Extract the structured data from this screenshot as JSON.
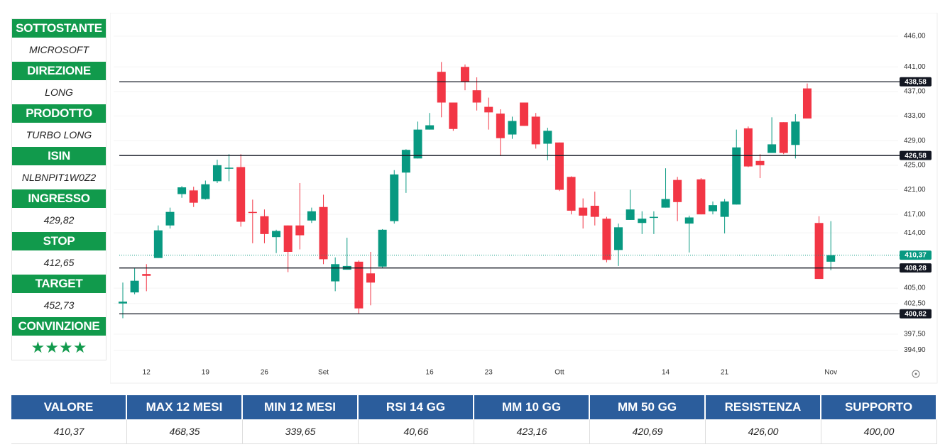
{
  "sidebar": [
    {
      "label": "SOTTOSTANTE",
      "value": "MICROSOFT"
    },
    {
      "label": "DIREZIONE",
      "value": "LONG"
    },
    {
      "label": "PRODOTTO",
      "value": "TURBO LONG"
    },
    {
      "label": "ISIN",
      "value": "NLBNPIT1W0Z2"
    },
    {
      "label": "INGRESSO",
      "value": "429,82"
    },
    {
      "label": "STOP",
      "value": "412,65"
    },
    {
      "label": "TARGET",
      "value": "452,73"
    },
    {
      "label": "CONVINZIONE",
      "value": "★★★★"
    }
  ],
  "table": {
    "headers": [
      "VALORE",
      "MAX 12 MESI",
      "MIN 12 MESI",
      "RSI 14 GG",
      "MM 10 GG",
      "MM 50 GG",
      "RESISTENZA",
      "SUPPORTO"
    ],
    "values": [
      "410,37",
      "468,35",
      "339,65",
      "40,66",
      "423,16",
      "420,69",
      "426,00",
      "400,00"
    ]
  },
  "chart_data": {
    "type": "candlestick",
    "up_color": "#089981",
    "down_color": "#f23645",
    "categories": [
      null,
      null,
      "12",
      null,
      null,
      null,
      null,
      "19",
      null,
      null,
      null,
      null,
      "26",
      null,
      null,
      null,
      null,
      "Set",
      null,
      null,
      null,
      null,
      null,
      null,
      null,
      null,
      "16",
      null,
      null,
      null,
      null,
      "23",
      null,
      null,
      null,
      null,
      null,
      "Ott",
      null,
      null,
      null,
      null,
      null,
      null,
      null,
      null,
      "14",
      null,
      null,
      null,
      null,
      "21",
      null,
      null,
      null,
      null,
      null,
      null,
      null,
      null,
      "Nov"
    ],
    "open": [
      402.5,
      404.3,
      407.3,
      409.9,
      415.2,
      420.3,
      420.9,
      419.5,
      422.4,
      424.5,
      424.7,
      417.4,
      416.7,
      413.3,
      415.2,
      415.2,
      416.0,
      418.2,
      406.1,
      408.0,
      409.3,
      407.4,
      408.5,
      415.9,
      423.8,
      426.1,
      430.8,
      440.2,
      435.2,
      441.0,
      437.2,
      434.5,
      433.4,
      430.0,
      435.2,
      432.9,
      428.5,
      428.7,
      423.1,
      418.1,
      418.4,
      416.3,
      411.2,
      416.1,
      415.6,
      416.5,
      418.1,
      422.6,
      415.5,
      422.7,
      417.5,
      416.6,
      418.6,
      431.0,
      425.7,
      427.0,
      432.0,
      428.3,
      437.5,
      415.6,
      409.3
    ],
    "high": [
      405.9,
      408.2,
      408.9,
      415.2,
      418.1,
      421.6,
      421.5,
      422.5,
      425.9,
      426.8,
      426.8,
      419.4,
      417.8,
      414.5,
      415.2,
      422.1,
      418.1,
      420.2,
      410.0,
      413.2,
      409.5,
      410.9,
      414.6,
      424.2,
      427.6,
      432.1,
      433.5,
      441.8,
      435.2,
      441.4,
      439.3,
      436.0,
      434.1,
      432.9,
      435.2,
      433.5,
      431.1,
      428.7,
      423.2,
      419.6,
      420.7,
      416.6,
      415.5,
      421.0,
      417.5,
      417.5,
      424.5,
      423.1,
      416.8,
      422.9,
      419.1,
      419.5,
      430.8,
      431.3,
      426.8,
      432.8,
      432.0,
      433.3,
      438.3,
      416.7,
      415.9
    ],
    "low": [
      400.1,
      404.0,
      404.5,
      409.9,
      414.7,
      419.7,
      418.2,
      419.4,
      422.1,
      422.4,
      415.0,
      412.3,
      412.3,
      410.7,
      407.6,
      411.3,
      415.6,
      408.9,
      404.5,
      408.0,
      400.9,
      402.2,
      408.3,
      415.5,
      420.5,
      426.1,
      430.8,
      432.8,
      430.6,
      437.2,
      433.9,
      430.8,
      426.5,
      429.3,
      431.4,
      427.7,
      425.8,
      420.8,
      417.0,
      414.7,
      415.2,
      409.2,
      408.6,
      416.1,
      413.8,
      413.8,
      418.1,
      415.9,
      410.8,
      417.0,
      417.0,
      413.9,
      418.6,
      424.7,
      422.9,
      427.0,
      426.8,
      426.1,
      432.6,
      406.5,
      407.9
    ],
    "close": [
      402.8,
      406.2,
      407.0,
      414.4,
      417.4,
      421.4,
      418.9,
      421.9,
      425.0,
      424.6,
      415.8,
      417.3,
      413.8,
      414.3,
      410.9,
      413.6,
      417.5,
      409.7,
      408.9,
      408.6,
      401.7,
      405.9,
      414.5,
      423.5,
      427.5,
      430.8,
      431.5,
      435.2,
      430.9,
      438.6,
      435.2,
      433.6,
      429.4,
      432.2,
      431.4,
      428.4,
      430.6,
      421.0,
      417.6,
      416.8,
      416.6,
      409.6,
      414.9,
      417.8,
      416.3,
      416.6,
      419.5,
      419.0,
      416.5,
      417.0,
      418.5,
      419.1,
      427.9,
      424.8,
      425.0,
      428.4,
      427.0,
      432.1,
      432.6,
      406.5,
      410.37
    ],
    "ylim": [
      393,
      449
    ],
    "yticks": [
      {
        "value": 446,
        "label": "446,00"
      },
      {
        "value": 441,
        "label": "441,00"
      },
      {
        "value": 437,
        "label": "437,00"
      },
      {
        "value": 433,
        "label": "433,00"
      },
      {
        "value": 429,
        "label": "429,00"
      },
      {
        "value": 425,
        "label": "425,00"
      },
      {
        "value": 421,
        "label": "421,00"
      },
      {
        "value": 417,
        "label": "417,00"
      },
      {
        "value": 414,
        "label": "414,00"
      },
      {
        "value": 405,
        "label": "405,00"
      },
      {
        "value": 402.5,
        "label": "402,50"
      },
      {
        "value": 397.5,
        "label": "397,50"
      },
      {
        "value": 394.9,
        "label": "394,90"
      }
    ],
    "levels": [
      {
        "value": 438.58,
        "label": "438,58"
      },
      {
        "value": 426.58,
        "label": "426,58"
      },
      {
        "value": 408.28,
        "label": "408,28"
      },
      {
        "value": 400.82,
        "label": "400,82"
      }
    ],
    "last_price": {
      "value": 410.37,
      "label": "410,37",
      "color": "#089981"
    },
    "level_color": "#131722"
  }
}
